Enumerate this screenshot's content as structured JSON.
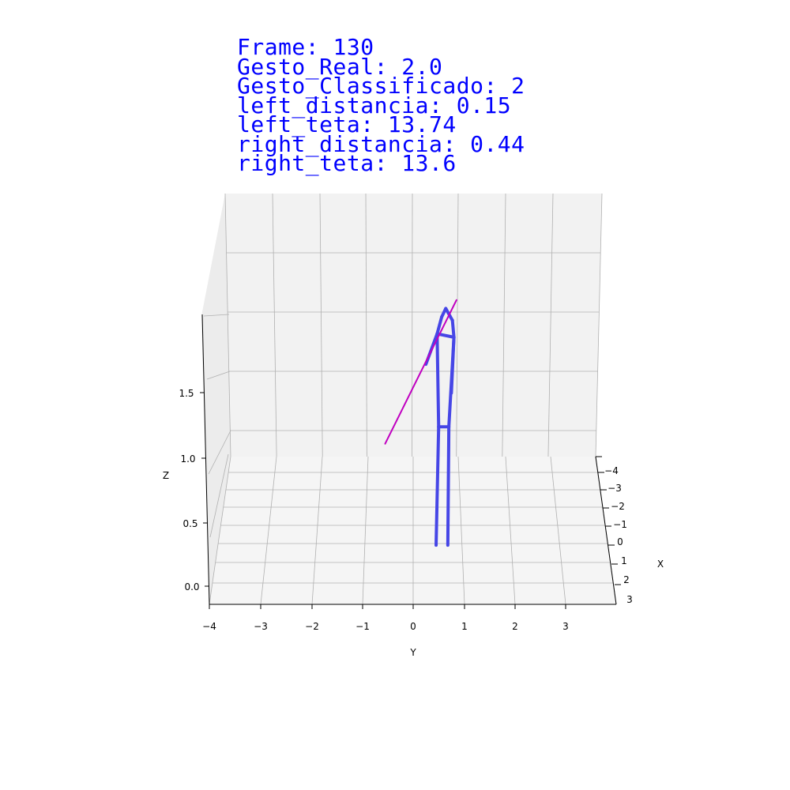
{
  "overlay": {
    "color": "#0000ff",
    "lines": [
      {
        "label": "Frame",
        "value": "130"
      },
      {
        "label": "Gesto_Real",
        "value": "2.0"
      },
      {
        "label": "Gesto_Classificado",
        "value": "2"
      },
      {
        "label": "left_distancia",
        "value": "0.15"
      },
      {
        "label": "left_teta",
        "value": "13.74"
      },
      {
        "label": "right_distancia",
        "value": "0.44"
      },
      {
        "label": "right_teta",
        "value": "13.6"
      }
    ]
  },
  "chart_data": {
    "type": "3d-line",
    "xlabel": "X",
    "ylabel": "Y",
    "zlabel": "Z",
    "x_ticks": [
      "−4",
      "−3",
      "−2",
      "−1",
      "0",
      "1",
      "2",
      "3"
    ],
    "y_ticks": [
      "−4",
      "−3",
      "−2",
      "−1",
      "0",
      "1",
      "2",
      "3"
    ],
    "z_ticks": [
      "0.0",
      "0.5",
      "1.0",
      "1.5"
    ],
    "grid": true,
    "series": [
      {
        "kind": "skeleton",
        "color": "#4646e6",
        "segments": [
          [
            [
              0.64,
              1.75
            ],
            [
              0.56,
              1.7
            ]
          ],
          [
            [
              0.64,
              1.75
            ],
            [
              0.77,
              1.68
            ]
          ],
          [
            [
              0.56,
              1.7
            ],
            [
              0.47,
              1.6
            ]
          ],
          [
            [
              0.77,
              1.68
            ],
            [
              0.8,
              1.58
            ]
          ],
          [
            [
              0.47,
              1.6
            ],
            [
              0.8,
              1.58
            ]
          ],
          [
            [
              0.47,
              1.6
            ],
            [
              0.25,
              1.42
            ]
          ],
          [
            [
              0.8,
              1.58
            ],
            [
              0.75,
              1.25
            ]
          ],
          [
            [
              0.47,
              1.6
            ],
            [
              0.5,
              1.05
            ]
          ],
          [
            [
              0.8,
              1.58
            ],
            [
              0.7,
              1.05
            ]
          ],
          [
            [
              0.5,
              1.05
            ],
            [
              0.7,
              1.05
            ]
          ],
          [
            [
              0.5,
              1.05
            ],
            [
              0.45,
              0.35
            ]
          ],
          [
            [
              0.7,
              1.05
            ],
            [
              0.68,
              0.35
            ]
          ]
        ]
      },
      {
        "kind": "pointing-line",
        "color": "#c000c0",
        "segments": [
          [
            [
              0.85,
              1.8
            ],
            [
              -0.55,
              0.95
            ]
          ]
        ]
      }
    ]
  }
}
